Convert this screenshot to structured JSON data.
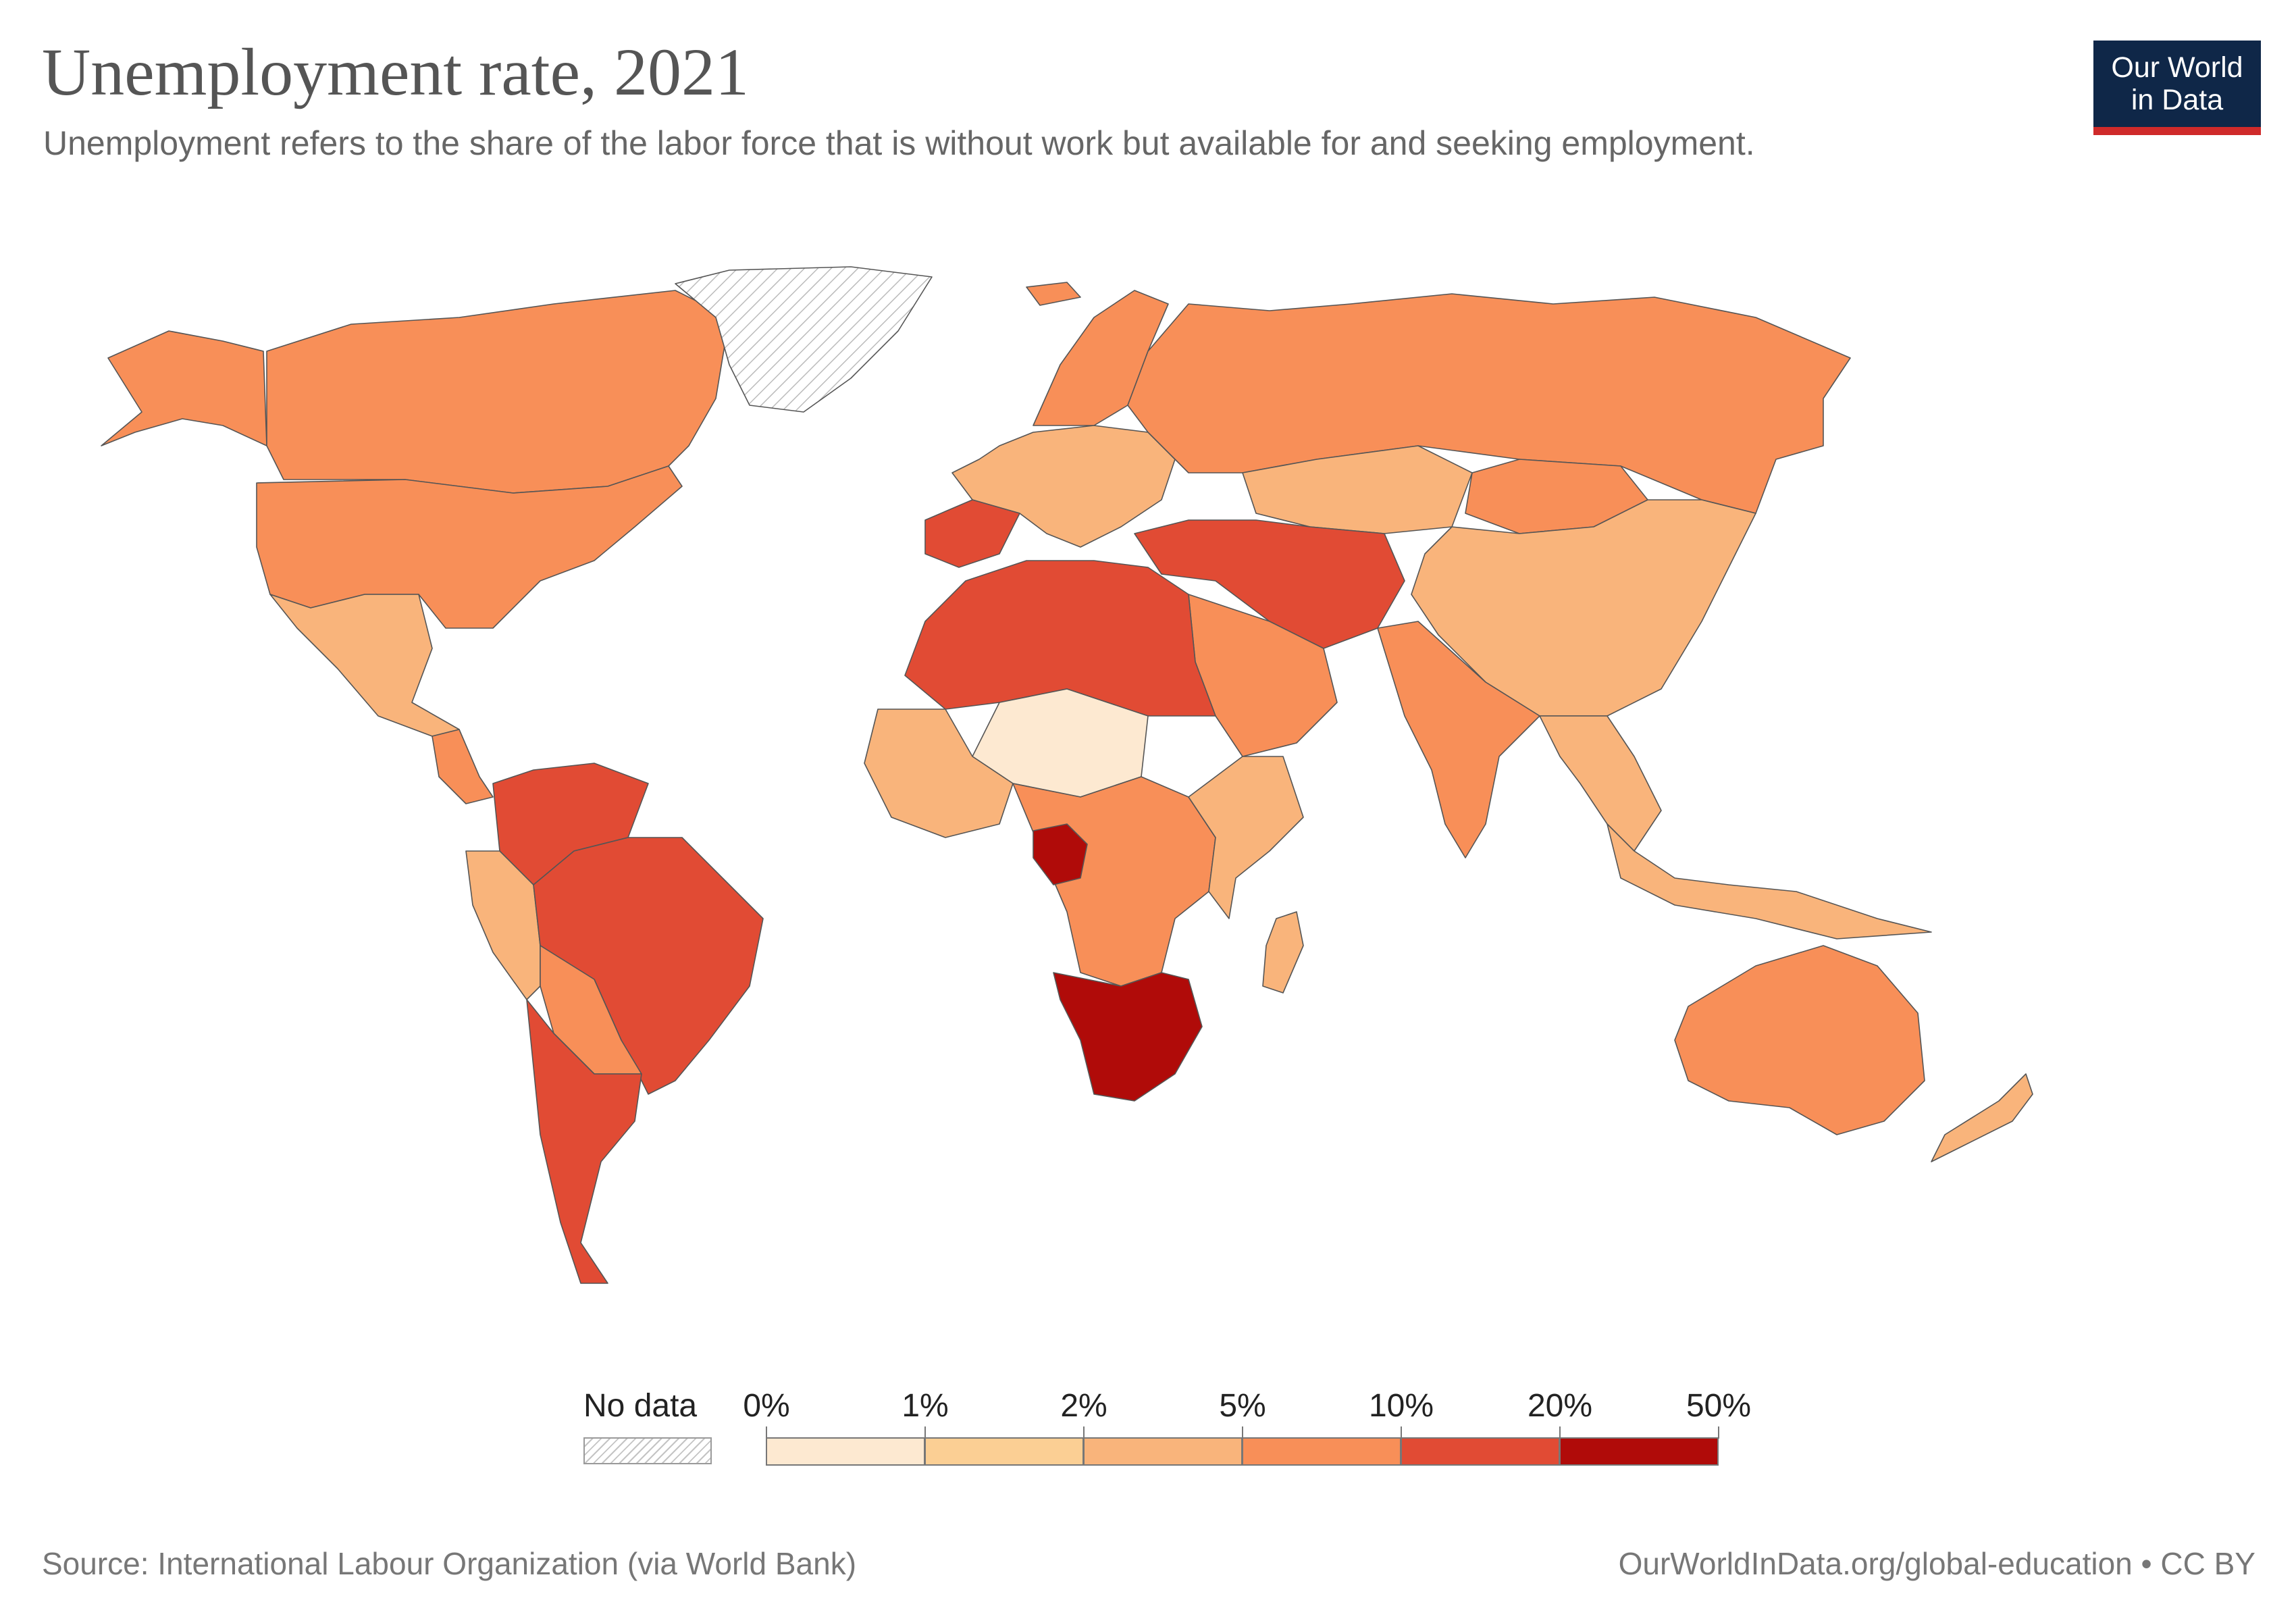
{
  "header": {
    "title": "Unemployment rate, 2021",
    "subtitle": "Unemployment refers to the share of the labor force that is without work but available for and seeking employment."
  },
  "logo": {
    "line1": "Our World",
    "line2": "in Data"
  },
  "legend": {
    "no_data_label": "No data",
    "no_data_color": "#ffffff",
    "ticks": [
      "0%",
      "1%",
      "2%",
      "5%",
      "10%",
      "20%",
      "50%"
    ],
    "bins": [
      {
        "from": "0%",
        "to": "1%",
        "color": "#fde9d1"
      },
      {
        "from": "1%",
        "to": "2%",
        "color": "#fbcf94"
      },
      {
        "from": "2%",
        "to": "5%",
        "color": "#f9b47b"
      },
      {
        "from": "5%",
        "to": "10%",
        "color": "#f88f58"
      },
      {
        "from": "10%",
        "to": "20%",
        "color": "#e14b34"
      },
      {
        "from": "20%",
        "to": "50%",
        "color": "#b00b09"
      }
    ]
  },
  "footer": {
    "source": "Source: International Labour Organization (via World Bank)",
    "url": "OurWorldInData.org/global-education • CC BY"
  },
  "map_data": {
    "type": "choropleth",
    "year": 2021,
    "regions": [
      {
        "name": "Alaska / USA",
        "bin": "5%–10%"
      },
      {
        "name": "Canada",
        "bin": "5%–10%"
      },
      {
        "name": "Greenland",
        "bin": "No data"
      },
      {
        "name": "USA",
        "bin": "5%–10%"
      },
      {
        "name": "Mexico",
        "bin": "2%–5%"
      },
      {
        "name": "Central America",
        "bin": "5%–10%"
      },
      {
        "name": "Colombia & Venezuela",
        "bin": "10%–20%"
      },
      {
        "name": "Peru",
        "bin": "2%–5%"
      },
      {
        "name": "Brazil",
        "bin": "10%–20%"
      },
      {
        "name": "Bolivia & Paraguay",
        "bin": "5%–10%"
      },
      {
        "name": "Argentina & Chile",
        "bin": "10%–20%"
      },
      {
        "name": "Iceland",
        "bin": "5%–10%"
      },
      {
        "name": "Scandinavia",
        "bin": "5%–10%"
      },
      {
        "name": "Western & Central Europe",
        "bin": "2%–5%"
      },
      {
        "name": "Spain",
        "bin": "10%–20%"
      },
      {
        "name": "Russia",
        "bin": "5%–10%"
      },
      {
        "name": "Kazakhstan",
        "bin": "2%–5%"
      },
      {
        "name": "Mongolia",
        "bin": "5%–10%"
      },
      {
        "name": "China",
        "bin": "2%–5%"
      },
      {
        "name": "India",
        "bin": "5%–10%"
      },
      {
        "name": "Turkey & Iran",
        "bin": "10%–20%"
      },
      {
        "name": "Saudi Arabia",
        "bin": "5%–10%"
      },
      {
        "name": "North Africa",
        "bin": "10%–20%"
      },
      {
        "name": "Sahel",
        "bin": "0%–1%"
      },
      {
        "name": "West Africa",
        "bin": "2%–5%"
      },
      {
        "name": "Central Africa",
        "bin": "5%–10%"
      },
      {
        "name": "Gabon",
        "bin": "20%–50%"
      },
      {
        "name": "East Africa",
        "bin": "2%–5%"
      },
      {
        "name": "Southern Africa",
        "bin": "20%–50%"
      },
      {
        "name": "Madagascar",
        "bin": "2%–5%"
      },
      {
        "name": "Southeast Asia",
        "bin": "2%–5%"
      },
      {
        "name": "Indonesia",
        "bin": "2%–5%"
      },
      {
        "name": "Australia",
        "bin": "5%–10%"
      },
      {
        "name": "New Zealand",
        "bin": "2%–5%"
      }
    ]
  }
}
